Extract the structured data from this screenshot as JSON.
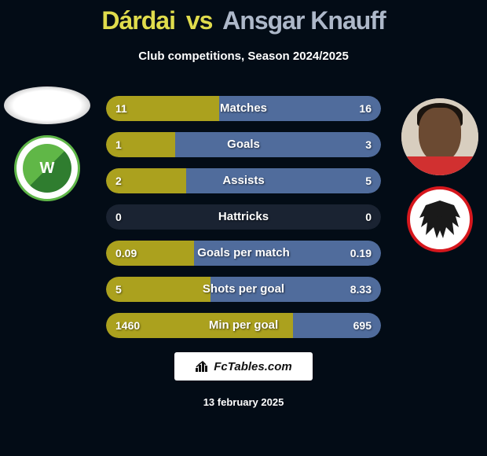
{
  "title": {
    "player1": "Dárdai",
    "vs": "vs",
    "player2": "Ansgar Knauff"
  },
  "subtitle": "Club competitions, Season 2024/2025",
  "colors": {
    "left": "#aba11e",
    "right": "#506c9c",
    "bg_stat": "#1a2332"
  },
  "stats": [
    {
      "label": "Matches",
      "left_val": "11",
      "right_val": "16",
      "left_pct": 41,
      "right_pct": 59
    },
    {
      "label": "Goals",
      "left_val": "1",
      "right_val": "3",
      "left_pct": 25,
      "right_pct": 75
    },
    {
      "label": "Assists",
      "left_val": "2",
      "right_val": "5",
      "left_pct": 29,
      "right_pct": 71
    },
    {
      "label": "Hattricks",
      "left_val": "0",
      "right_val": "0",
      "left_pct": 0,
      "right_pct": 0
    },
    {
      "label": "Goals per match",
      "left_val": "0.09",
      "right_val": "0.19",
      "left_pct": 32,
      "right_pct": 68
    },
    {
      "label": "Shots per goal",
      "left_val": "5",
      "right_val": "8.33",
      "left_pct": 38,
      "right_pct": 62
    },
    {
      "label": "Min per goal",
      "left_val": "1460",
      "right_val": "695",
      "left_pct": 68,
      "right_pct": 32
    }
  ],
  "footer_brand": "FcTables.com",
  "footer_date": "13 february 2025",
  "club_left_letter": "W"
}
